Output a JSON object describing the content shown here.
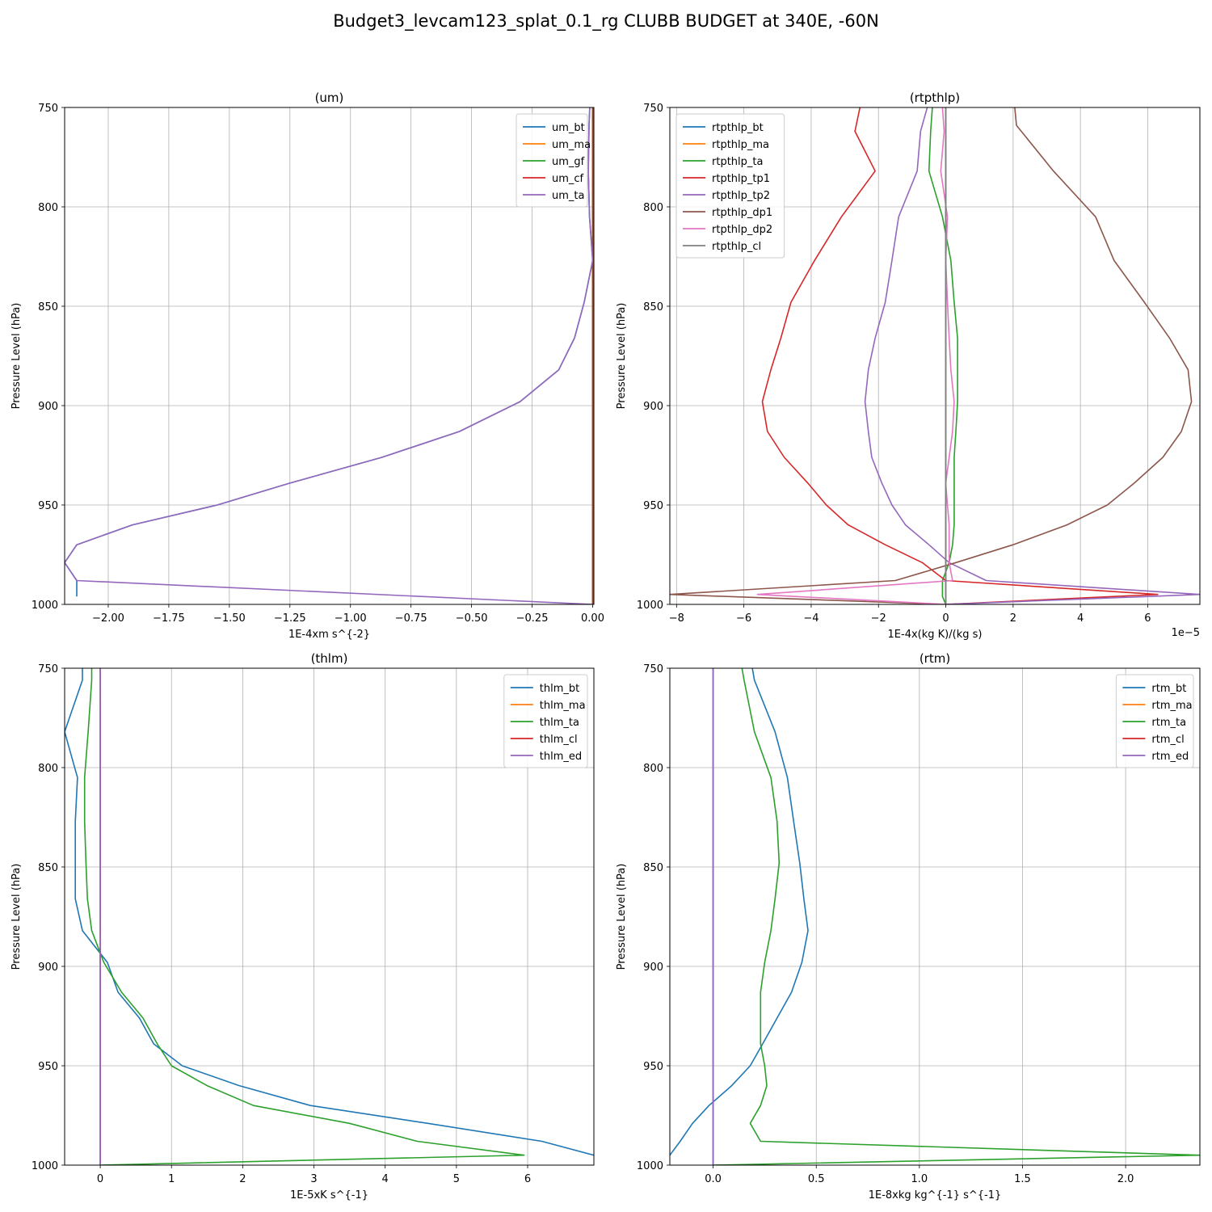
{
  "suptitle": "Budget3_levcam123_splat_0.1_rg CLUBB BUDGET at 340E, -60N",
  "chart_data": [
    {
      "type": "line",
      "title": "(um)",
      "xlabel": "1E-4xm s^{-2}",
      "ylabel": "Pressure Level (hPa)",
      "xlim": [
        -2.18,
        0.005
      ],
      "ylim": [
        1000,
        750
      ],
      "y_inverted": true,
      "xticks": [
        -2.0,
        -1.75,
        -1.5,
        -1.25,
        -1.0,
        -0.75,
        -0.5,
        -0.25,
        0.0
      ],
      "xtick_labels": [
        "−2.00",
        "−1.75",
        "−1.50",
        "−1.25",
        "−1.00",
        "−0.75",
        "−0.50",
        "−0.25",
        "0.00"
      ],
      "yticks": [
        750,
        800,
        850,
        900,
        950,
        1000
      ],
      "grid": true,
      "legend_position": "upper right",
      "offset_text": "",
      "series": [
        {
          "name": "um_bt",
          "color": "#1f77b4",
          "x": [
            -0.012,
            -0.015,
            -0.018,
            -0.013,
            0.0,
            -0.035,
            -0.075,
            -0.14,
            -0.3,
            -0.55,
            -0.87,
            -1.25,
            -1.55,
            -1.9,
            -2.13,
            -2.18,
            -2.13,
            -2.13
          ],
          "y": [
            750,
            759,
            782,
            805,
            827,
            848,
            866,
            882,
            898,
            913,
            926,
            939,
            950,
            960,
            970,
            979,
            988,
            996
          ]
        },
        {
          "name": "um_ma",
          "color": "#ff7f0e",
          "x": [
            0.0,
            0.0
          ],
          "y": [
            750,
            1000
          ]
        },
        {
          "name": "um_gf",
          "color": "#2ca02c",
          "x": [
            0.0,
            0.0
          ],
          "y": [
            750,
            1000
          ]
        },
        {
          "name": "um_cf",
          "color": "#d62728",
          "x": [
            0.0,
            0.0
          ],
          "y": [
            750,
            1000
          ]
        },
        {
          "name": "um_ta",
          "color": "#9467bd",
          "x": [
            -0.012,
            -0.015,
            -0.018,
            -0.013,
            0.0,
            -0.035,
            -0.075,
            -0.14,
            -0.3,
            -0.55,
            -0.87,
            -1.25,
            -1.55,
            -1.9,
            -2.13,
            -2.18,
            -2.13,
            0.0
          ],
          "y": [
            750,
            759,
            782,
            805,
            827,
            848,
            866,
            882,
            898,
            913,
            926,
            939,
            950,
            960,
            970,
            979,
            988,
            1000
          ]
        }
      ]
    },
    {
      "type": "line",
      "title": "(rtpthlp)",
      "xlabel": "1E-4x(kg K)/(kg s)",
      "ylabel": "Pressure Level (hPa)",
      "xlim": [
        -8.2,
        7.55
      ],
      "ylim": [
        1000,
        750
      ],
      "y_inverted": true,
      "xticks": [
        -8,
        -6,
        -4,
        -2,
        0,
        2,
        4,
        6
      ],
      "xtick_labels": [
        "−8",
        "−6",
        "−4",
        "−2",
        "0",
        "2",
        "4",
        "6"
      ],
      "yticks": [
        750,
        800,
        850,
        900,
        950,
        1000
      ],
      "grid": true,
      "legend_position": "upper left",
      "offset_text": "1e−5",
      "series": [
        {
          "name": "rtpthlp_bt",
          "color": "#1f77b4",
          "x": [
            0.0,
            0.0
          ],
          "y": [
            750,
            1000
          ]
        },
        {
          "name": "rtpthlp_ma",
          "color": "#ff7f0e",
          "x": [
            0.0,
            0.0
          ],
          "y": [
            750,
            1000
          ]
        },
        {
          "name": "rtpthlp_ta",
          "color": "#2ca02c",
          "x": [
            -0.4,
            -0.45,
            -0.5,
            -0.1,
            0.15,
            0.25,
            0.35,
            0.35,
            0.35,
            0.3,
            0.25,
            0.25,
            0.25,
            0.25,
            0.2,
            0.1,
            -0.1,
            -0.1,
            0.0
          ],
          "y": [
            750,
            762,
            782,
            805,
            827,
            848,
            866,
            882,
            898,
            913,
            926,
            939,
            950,
            960,
            970,
            979,
            988,
            996,
            1000
          ]
        },
        {
          "name": "rtpthlp_tp1",
          "color": "#d62728",
          "x": [
            -2.55,
            -2.7,
            -2.1,
            -3.1,
            -3.9,
            -4.6,
            -4.9,
            -5.2,
            -5.45,
            -5.3,
            -4.8,
            -4.1,
            -3.55,
            -2.9,
            -1.8,
            -0.7,
            0.0,
            6.3,
            0.0
          ],
          "y": [
            750,
            762,
            782,
            805,
            827,
            848,
            866,
            882,
            898,
            913,
            926,
            939,
            950,
            960,
            970,
            979,
            988,
            995,
            1000
          ]
        },
        {
          "name": "rtpthlp_tp2",
          "color": "#9467bd",
          "x": [
            -0.55,
            -0.75,
            -0.85,
            -1.4,
            -1.6,
            -1.8,
            -2.1,
            -2.3,
            -2.4,
            -2.3,
            -2.2,
            -1.9,
            -1.6,
            -1.2,
            -0.5,
            0.1,
            1.2,
            7.55,
            0.0
          ],
          "y": [
            750,
            762,
            782,
            805,
            827,
            848,
            866,
            882,
            898,
            913,
            926,
            939,
            950,
            960,
            970,
            979,
            988,
            995,
            1000
          ]
        },
        {
          "name": "rtpthlp_dp1",
          "color": "#8c564b",
          "x": [
            2.05,
            2.1,
            3.2,
            4.45,
            5.0,
            5.9,
            6.65,
            7.2,
            7.3,
            7.0,
            6.45,
            5.6,
            4.8,
            3.6,
            2.0,
            0.3,
            -1.5,
            -8.2,
            0.0
          ],
          "y": [
            750,
            759,
            782,
            805,
            827,
            848,
            866,
            882,
            898,
            913,
            926,
            939,
            950,
            960,
            970,
            979,
            988,
            995,
            1000
          ]
        },
        {
          "name": "rtpthlp_dp2",
          "color": "#e377c2",
          "x": [
            -0.1,
            -0.05,
            -0.15,
            0.05,
            0.0,
            0.05,
            0.1,
            0.15,
            0.25,
            0.2,
            0.1,
            0.0,
            0.05,
            0.1,
            0.1,
            0.1,
            0.2,
            -5.6,
            0.0
          ],
          "y": [
            750,
            762,
            782,
            805,
            827,
            848,
            866,
            882,
            898,
            913,
            926,
            939,
            950,
            960,
            970,
            979,
            988,
            995,
            1000
          ]
        },
        {
          "name": "rtpthlp_cl",
          "color": "#7f7f7f",
          "x": [
            0.0,
            0.0
          ],
          "y": [
            750,
            1000
          ]
        }
      ]
    },
    {
      "type": "line",
      "title": "(thlm)",
      "xlabel": "1E-5xK s^{-1}",
      "ylabel": "Pressure Level (hPa)",
      "xlim": [
        -0.5,
        6.93
      ],
      "ylim": [
        1000,
        750
      ],
      "y_inverted": true,
      "xticks": [
        0,
        1,
        2,
        3,
        4,
        5,
        6
      ],
      "xtick_labels": [
        "0",
        "1",
        "2",
        "3",
        "4",
        "5",
        "6"
      ],
      "yticks": [
        750,
        800,
        850,
        900,
        950,
        1000
      ],
      "grid": true,
      "legend_position": "upper right",
      "offset_text": "",
      "series": [
        {
          "name": "thlm_bt",
          "color": "#1f77b4",
          "x": [
            -0.25,
            -0.25,
            -0.5,
            -0.32,
            -0.35,
            -0.35,
            -0.35,
            -0.25,
            0.1,
            0.25,
            0.55,
            0.75,
            1.15,
            1.95,
            2.95,
            4.6,
            6.2,
            6.93
          ],
          "y": [
            750,
            756,
            782,
            805,
            827,
            848,
            866,
            882,
            898,
            913,
            926,
            939,
            950,
            960,
            970,
            979,
            988,
            995
          ]
        },
        {
          "name": "thlm_ma",
          "color": "#ff7f0e",
          "x": [
            0.0,
            0.0
          ],
          "y": [
            750,
            1000
          ]
        },
        {
          "name": "thlm_ta",
          "color": "#2ca02c",
          "x": [
            -0.12,
            -0.12,
            -0.17,
            -0.22,
            -0.22,
            -0.2,
            -0.18,
            -0.12,
            0.05,
            0.3,
            0.6,
            0.8,
            1.0,
            1.5,
            2.15,
            3.5,
            4.45,
            5.95,
            0.0
          ],
          "y": [
            750,
            756,
            782,
            805,
            827,
            848,
            866,
            882,
            898,
            913,
            926,
            939,
            950,
            960,
            970,
            979,
            988,
            995,
            1000
          ]
        },
        {
          "name": "thlm_cl",
          "color": "#d62728",
          "x": [
            0.0,
            0.0
          ],
          "y": [
            750,
            1000
          ]
        },
        {
          "name": "thlm_ed",
          "color": "#9467bd",
          "x": [
            0.0,
            0.0
          ],
          "y": [
            750,
            1000
          ]
        }
      ]
    },
    {
      "type": "line",
      "title": "(rtm)",
      "xlabel": "1E-8xkg kg^{-1} s^{-1}",
      "ylabel": "Pressure Level (hPa)",
      "xlim": [
        -0.21,
        2.36
      ],
      "ylim": [
        1000,
        750
      ],
      "y_inverted": true,
      "xticks": [
        0.0,
        0.5,
        1.0,
        1.5,
        2.0
      ],
      "xtick_labels": [
        "0.0",
        "0.5",
        "1.0",
        "1.5",
        "2.0"
      ],
      "yticks": [
        750,
        800,
        850,
        900,
        950,
        1000
      ],
      "grid": true,
      "legend_position": "upper right",
      "offset_text": "",
      "series": [
        {
          "name": "rtm_bt",
          "color": "#1f77b4",
          "x": [
            0.19,
            0.2,
            0.3,
            0.36,
            0.39,
            0.42,
            0.44,
            0.46,
            0.43,
            0.38,
            0.31,
            0.24,
            0.18,
            0.09,
            -0.02,
            -0.1,
            -0.16,
            -0.21
          ],
          "y": [
            750,
            756,
            782,
            805,
            827,
            848,
            866,
            882,
            898,
            913,
            926,
            939,
            950,
            960,
            970,
            979,
            988,
            995
          ]
        },
        {
          "name": "rtm_ma",
          "color": "#ff7f0e",
          "x": [
            0.0,
            0.0
          ],
          "y": [
            750,
            1000
          ]
        },
        {
          "name": "rtm_ta",
          "color": "#2ca02c",
          "x": [
            0.14,
            0.15,
            0.2,
            0.28,
            0.31,
            0.32,
            0.3,
            0.28,
            0.25,
            0.23,
            0.23,
            0.23,
            0.25,
            0.26,
            0.23,
            0.18,
            0.23,
            2.36,
            0.0
          ],
          "y": [
            750,
            756,
            782,
            805,
            827,
            848,
            866,
            882,
            898,
            913,
            926,
            939,
            950,
            960,
            970,
            979,
            988,
            995,
            1000
          ]
        },
        {
          "name": "rtm_cl",
          "color": "#d62728",
          "x": [
            0.0,
            0.0
          ],
          "y": [
            750,
            1000
          ]
        },
        {
          "name": "rtm_ed",
          "color": "#9467bd",
          "x": [
            0.0,
            0.0
          ],
          "y": [
            750,
            1000
          ]
        }
      ]
    }
  ]
}
